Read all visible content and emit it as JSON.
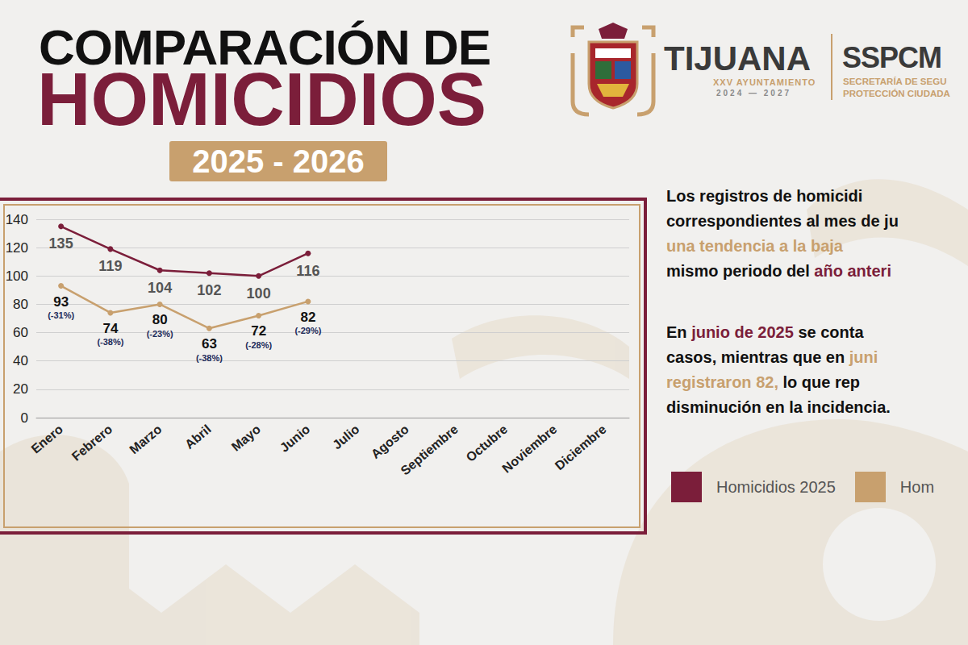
{
  "header": {
    "title_line1": "COMPARACIÓN DE",
    "title_line2": "HOMICIDIOS",
    "years": "2025 - 2026",
    "logo": {
      "name": "TIJUANA",
      "line1": "XXV AYUNTAMIENTO",
      "line2": "2024 — 2027"
    },
    "agency": {
      "name": "SSPCM",
      "line1": "SECRETARÍA DE SEGU",
      "line2": "PROTECCIÓN CIUDADA"
    }
  },
  "text": {
    "paragraphs": [
      [
        [
          {
            "text": "Los registros de homicidi"
          }
        ],
        [
          {
            "text": "correspondientes al mes de ju"
          }
        ],
        [
          {
            "text": "una tendencia a la baja",
            "color": "#c8a06e"
          }
        ],
        [
          {
            "text": "mismo periodo del "
          },
          {
            "text": "año anteri",
            "color": "#7b1e3a"
          }
        ]
      ],
      [
        [
          {
            "text": "En "
          },
          {
            "text": "junio de 2025",
            "color": "#7b1e3a"
          },
          {
            "text": " se conta"
          }
        ],
        [
          {
            "text": "casos, mientras que en "
          },
          {
            "text": "juni",
            "color": "#c8a06e"
          }
        ],
        [
          {
            "text": "registraron 82,",
            "color": "#c8a06e"
          },
          {
            "text": " lo que rep"
          }
        ],
        [
          {
            "text": "disminución en la incidencia."
          }
        ]
      ]
    ]
  },
  "chart_data": {
    "type": "line",
    "categories": [
      "Enero",
      "Febrero",
      "Marzo",
      "Abril",
      "Mayo",
      "Junio",
      "Julio",
      "Agosto",
      "Septiembre",
      "Octubre",
      "Noviembre",
      "Diciembre"
    ],
    "series": [
      {
        "name": "Homicidios 2025",
        "color": "#7b1e3a",
        "marker": "circle",
        "line_style": "solid",
        "values": [
          135,
          119,
          104,
          102,
          100,
          116,
          null,
          null,
          null,
          null,
          null,
          null
        ]
      },
      {
        "name": "Hom",
        "color": "#c8a06e",
        "marker": "circle",
        "line_style": "solid",
        "values": [
          93,
          74,
          80,
          63,
          72,
          82,
          null,
          null,
          null,
          null,
          null,
          null
        ],
        "change_labels": [
          "(-31%)",
          "(-38%)",
          "(-23%)",
          "(-38%)",
          "(-28%)",
          "(-29%)",
          null,
          null,
          null,
          null,
          null,
          null
        ]
      }
    ],
    "ylim": [
      0,
      140
    ],
    "yticks": [
      0,
      20,
      40,
      60,
      80,
      100,
      120,
      140
    ],
    "grid": true,
    "data_labels": true,
    "legend": "right"
  }
}
